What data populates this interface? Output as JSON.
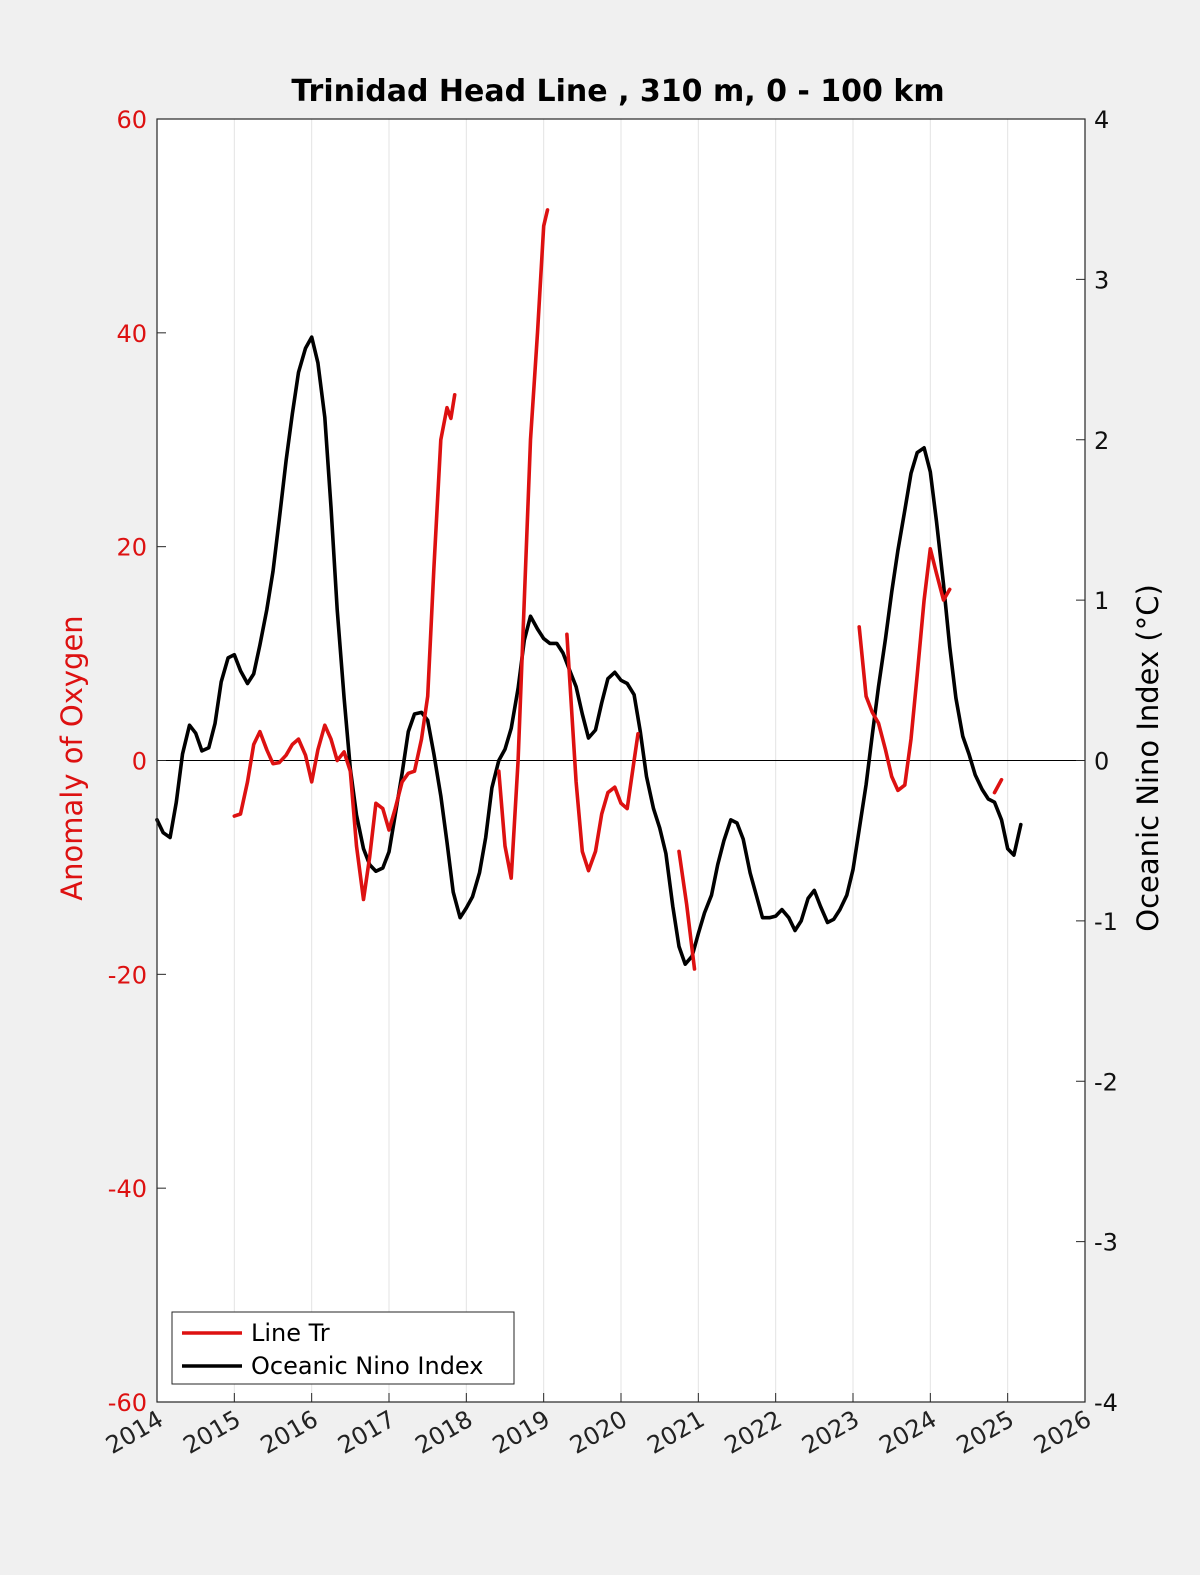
{
  "chart_data": {
    "type": "line",
    "title": "Trinidad Head Line , 310 m, 0 - 100 km",
    "ylabel_left": "Anomaly of Oxygen",
    "ylabel_right": "Oceanic Nino Index (°C)",
    "xlim": [
      2014,
      2026
    ],
    "ylim_left": [
      -60,
      60
    ],
    "ylim_right": [
      -4,
      4
    ],
    "x_ticks": [
      "2014",
      "2015",
      "2016",
      "2017",
      "2018",
      "2019",
      "2020",
      "2021",
      "2022",
      "2023",
      "2024",
      "2025",
      "2026"
    ],
    "y_ticks_left": [
      "60",
      "40",
      "20",
      "0",
      "-20",
      "-40",
      "-60"
    ],
    "y_ticks_right": [
      "4",
      "3",
      "2",
      "1",
      "0",
      "-1",
      "-2",
      "-3",
      "-4"
    ],
    "grid": "vertical",
    "legend_position": "bottom-left",
    "colors": {
      "oxygen": "#dd1111",
      "oni": "#000000",
      "background": "#f0f0f0",
      "axes": "#ffffff"
    },
    "series": [
      {
        "name": "Line Tr",
        "axis": "left",
        "segments": [
          [
            [
              2015.0,
              -5.2
            ],
            [
              2015.08,
              -5.0
            ],
            [
              2015.17,
              -2.0
            ],
            [
              2015.25,
              1.5
            ],
            [
              2015.33,
              2.7
            ],
            [
              2015.42,
              1.0
            ],
            [
              2015.5,
              -0.3
            ],
            [
              2015.58,
              -0.2
            ],
            [
              2015.67,
              0.5
            ],
            [
              2015.75,
              1.5
            ],
            [
              2015.83,
              2.0
            ],
            [
              2015.92,
              0.5
            ],
            [
              2016.0,
              -2.0
            ],
            [
              2016.08,
              1.0
            ],
            [
              2016.17,
              3.3
            ],
            [
              2016.25,
              2.0
            ],
            [
              2016.33,
              0.0
            ],
            [
              2016.42,
              0.8
            ],
            [
              2016.5,
              -1.0
            ],
            [
              2016.58,
              -8.0
            ],
            [
              2016.67,
              -13.0
            ],
            [
              2016.75,
              -9.0
            ],
            [
              2016.83,
              -4.0
            ],
            [
              2016.92,
              -4.5
            ],
            [
              2017.0,
              -6.5
            ],
            [
              2017.08,
              -4.5
            ],
            [
              2017.17,
              -2.0
            ],
            [
              2017.25,
              -1.2
            ],
            [
              2017.33,
              -1.0
            ],
            [
              2017.42,
              2.0
            ],
            [
              2017.5,
              6.0
            ],
            [
              2017.58,
              18.0
            ],
            [
              2017.67,
              30.0
            ],
            [
              2017.75,
              33.0
            ],
            [
              2017.8,
              32.0
            ],
            [
              2017.85,
              34.2
            ]
          ],
          [
            [
              2018.42,
              -1.0
            ],
            [
              2018.5,
              -8.0
            ],
            [
              2018.58,
              -11.0
            ],
            [
              2018.67,
              0.0
            ],
            [
              2018.75,
              15.0
            ],
            [
              2018.83,
              30.0
            ],
            [
              2018.92,
              40.0
            ],
            [
              2019.0,
              50.0
            ],
            [
              2019.05,
              51.5
            ]
          ],
          [
            [
              2019.3,
              11.8
            ],
            [
              2019.42,
              -2.0
            ],
            [
              2019.5,
              -8.5
            ],
            [
              2019.58,
              -10.3
            ],
            [
              2019.67,
              -8.5
            ],
            [
              2019.75,
              -5.0
            ],
            [
              2019.83,
              -3.0
            ],
            [
              2019.92,
              -2.5
            ],
            [
              2020.0,
              -4.0
            ],
            [
              2020.08,
              -4.5
            ],
            [
              2020.17,
              0.0
            ],
            [
              2020.22,
              2.5
            ]
          ],
          [
            [
              2020.75,
              -8.5
            ],
            [
              2020.85,
              -13.5
            ],
            [
              2020.95,
              -19.5
            ]
          ],
          [
            [
              2023.08,
              12.5
            ],
            [
              2023.17,
              6.0
            ],
            [
              2023.25,
              4.5
            ],
            [
              2023.33,
              3.5
            ],
            [
              2023.42,
              1.0
            ],
            [
              2023.5,
              -1.5
            ],
            [
              2023.58,
              -2.8
            ],
            [
              2023.67,
              -2.3
            ],
            [
              2023.75,
              2.0
            ],
            [
              2023.83,
              8.0
            ],
            [
              2023.92,
              15.0
            ],
            [
              2024.0,
              19.8
            ],
            [
              2024.08,
              17.5
            ],
            [
              2024.17,
              15.0
            ],
            [
              2024.25,
              16.0
            ]
          ],
          [
            [
              2024.83,
              -3.0
            ],
            [
              2024.92,
              -1.8
            ]
          ]
        ]
      },
      {
        "name": "Oceanic Nino Index",
        "axis": "right",
        "segments": [
          [
            [
              2014.0,
              -0.37
            ],
            [
              2014.08,
              -0.45
            ],
            [
              2014.17,
              -0.48
            ],
            [
              2014.25,
              -0.26
            ],
            [
              2014.33,
              0.04
            ],
            [
              2014.42,
              0.22
            ],
            [
              2014.5,
              0.17
            ],
            [
              2014.58,
              0.06
            ],
            [
              2014.67,
              0.08
            ],
            [
              2014.75,
              0.23
            ],
            [
              2014.83,
              0.49
            ],
            [
              2014.92,
              0.64
            ],
            [
              2015.0,
              0.66
            ],
            [
              2015.08,
              0.56
            ],
            [
              2015.17,
              0.48
            ],
            [
              2015.25,
              0.54
            ],
            [
              2015.33,
              0.72
            ],
            [
              2015.42,
              0.94
            ],
            [
              2015.5,
              1.18
            ],
            [
              2015.58,
              1.5
            ],
            [
              2015.67,
              1.87
            ],
            [
              2015.75,
              2.16
            ],
            [
              2015.83,
              2.42
            ],
            [
              2015.92,
              2.57
            ],
            [
              2016.0,
              2.64
            ],
            [
              2016.08,
              2.48
            ],
            [
              2016.17,
              2.14
            ],
            [
              2016.25,
              1.58
            ],
            [
              2016.33,
              0.94
            ],
            [
              2016.42,
              0.39
            ],
            [
              2016.5,
              -0.05
            ],
            [
              2016.58,
              -0.34
            ],
            [
              2016.67,
              -0.55
            ],
            [
              2016.75,
              -0.65
            ],
            [
              2016.83,
              -0.69
            ],
            [
              2016.92,
              -0.67
            ],
            [
              2017.0,
              -0.57
            ],
            [
              2017.08,
              -0.34
            ],
            [
              2017.17,
              -0.08
            ],
            [
              2017.25,
              0.18
            ],
            [
              2017.33,
              0.29
            ],
            [
              2017.42,
              0.3
            ],
            [
              2017.5,
              0.25
            ],
            [
              2017.58,
              0.04
            ],
            [
              2017.67,
              -0.22
            ],
            [
              2017.75,
              -0.51
            ],
            [
              2017.83,
              -0.82
            ],
            [
              2017.92,
              -0.98
            ],
            [
              2018.0,
              -0.92
            ],
            [
              2018.08,
              -0.85
            ],
            [
              2018.17,
              -0.7
            ],
            [
              2018.25,
              -0.48
            ],
            [
              2018.33,
              -0.17
            ],
            [
              2018.42,
              0.0
            ],
            [
              2018.5,
              0.07
            ],
            [
              2018.58,
              0.2
            ],
            [
              2018.67,
              0.45
            ],
            [
              2018.75,
              0.75
            ],
            [
              2018.83,
              0.9
            ],
            [
              2018.92,
              0.82
            ],
            [
              2019.0,
              0.76
            ],
            [
              2019.08,
              0.73
            ],
            [
              2019.17,
              0.73
            ],
            [
              2019.25,
              0.67
            ],
            [
              2019.33,
              0.57
            ],
            [
              2019.42,
              0.46
            ],
            [
              2019.5,
              0.29
            ],
            [
              2019.58,
              0.14
            ],
            [
              2019.67,
              0.19
            ],
            [
              2019.75,
              0.36
            ],
            [
              2019.83,
              0.51
            ],
            [
              2019.92,
              0.55
            ],
            [
              2020.0,
              0.5
            ],
            [
              2020.08,
              0.48
            ],
            [
              2020.17,
              0.41
            ],
            [
              2020.25,
              0.18
            ],
            [
              2020.33,
              -0.1
            ],
            [
              2020.42,
              -0.3
            ],
            [
              2020.5,
              -0.42
            ],
            [
              2020.58,
              -0.58
            ],
            [
              2020.67,
              -0.91
            ],
            [
              2020.75,
              -1.16
            ],
            [
              2020.83,
              -1.27
            ],
            [
              2020.92,
              -1.22
            ],
            [
              2021.0,
              -1.08
            ],
            [
              2021.08,
              -0.95
            ],
            [
              2021.17,
              -0.84
            ],
            [
              2021.25,
              -0.65
            ],
            [
              2021.33,
              -0.5
            ],
            [
              2021.42,
              -0.37
            ],
            [
              2021.5,
              -0.39
            ],
            [
              2021.58,
              -0.49
            ],
            [
              2021.67,
              -0.7
            ],
            [
              2021.75,
              -0.84
            ],
            [
              2021.83,
              -0.98
            ],
            [
              2021.92,
              -0.98
            ],
            [
              2022.0,
              -0.97
            ],
            [
              2022.08,
              -0.93
            ],
            [
              2022.17,
              -0.98
            ],
            [
              2022.25,
              -1.06
            ],
            [
              2022.33,
              -1.0
            ],
            [
              2022.42,
              -0.86
            ],
            [
              2022.5,
              -0.81
            ],
            [
              2022.58,
              -0.91
            ],
            [
              2022.67,
              -1.01
            ],
            [
              2022.75,
              -0.99
            ],
            [
              2022.83,
              -0.93
            ],
            [
              2022.92,
              -0.84
            ],
            [
              2023.0,
              -0.68
            ],
            [
              2023.08,
              -0.43
            ],
            [
              2023.17,
              -0.15
            ],
            [
              2023.25,
              0.16
            ],
            [
              2023.33,
              0.46
            ],
            [
              2023.42,
              0.76
            ],
            [
              2023.5,
              1.05
            ],
            [
              2023.58,
              1.31
            ],
            [
              2023.67,
              1.56
            ],
            [
              2023.75,
              1.79
            ],
            [
              2023.83,
              1.92
            ],
            [
              2023.92,
              1.95
            ],
            [
              2024.0,
              1.8
            ],
            [
              2024.08,
              1.49
            ],
            [
              2024.17,
              1.1
            ],
            [
              2024.25,
              0.71
            ],
            [
              2024.33,
              0.39
            ],
            [
              2024.42,
              0.15
            ],
            [
              2024.5,
              0.04
            ],
            [
              2024.58,
              -0.09
            ],
            [
              2024.67,
              -0.18
            ],
            [
              2024.75,
              -0.24
            ],
            [
              2024.83,
              -0.26
            ],
            [
              2024.92,
              -0.37
            ],
            [
              2025.0,
              -0.55
            ],
            [
              2025.08,
              -0.59
            ],
            [
              2025.17,
              -0.4
            ]
          ]
        ]
      }
    ]
  }
}
